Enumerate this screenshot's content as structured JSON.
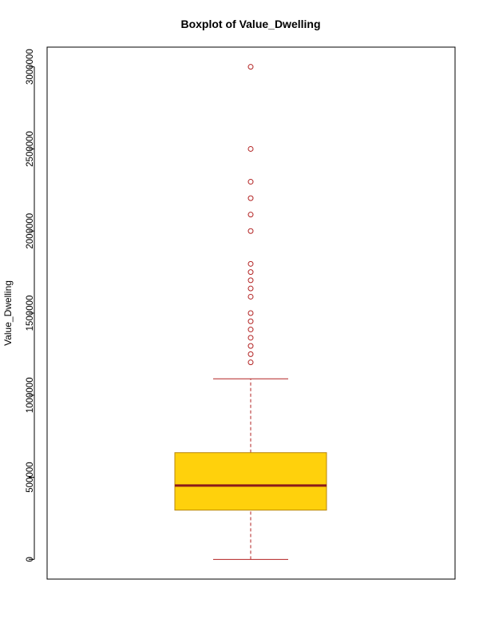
{
  "chart_data": {
    "type": "boxplot",
    "title": "Boxplot of Value_Dwelling",
    "xlabel": "",
    "ylabel": "Value_Dwelling",
    "ylim": [
      -120000,
      3120000
    ],
    "yticks": [
      0,
      500000,
      1000000,
      1500000,
      2000000,
      2500000,
      3000000
    ],
    "ytick_labels": [
      "0",
      "500000",
      "1000000",
      "1500000",
      "2000000",
      "2500000",
      "3000000"
    ],
    "grid": false,
    "legend": "none",
    "box": {
      "whisker_low": 0,
      "q1": 300000,
      "median": 450000,
      "q3": 650000,
      "whisker_high": 1100000
    },
    "outliers": [
      1200000,
      1250000,
      1300000,
      1350000,
      1400000,
      1450000,
      1500000,
      1600000,
      1650000,
      1700000,
      1750000,
      1800000,
      2000000,
      2100000,
      2200000,
      2300000,
      2500000,
      3000000
    ],
    "colors": {
      "box_fill": "#FFD10C",
      "box_border": "#B8860B",
      "median": "#8B1A1A",
      "whisker": "#B22222",
      "outlier": "#B22222",
      "frame": "#000000"
    }
  }
}
